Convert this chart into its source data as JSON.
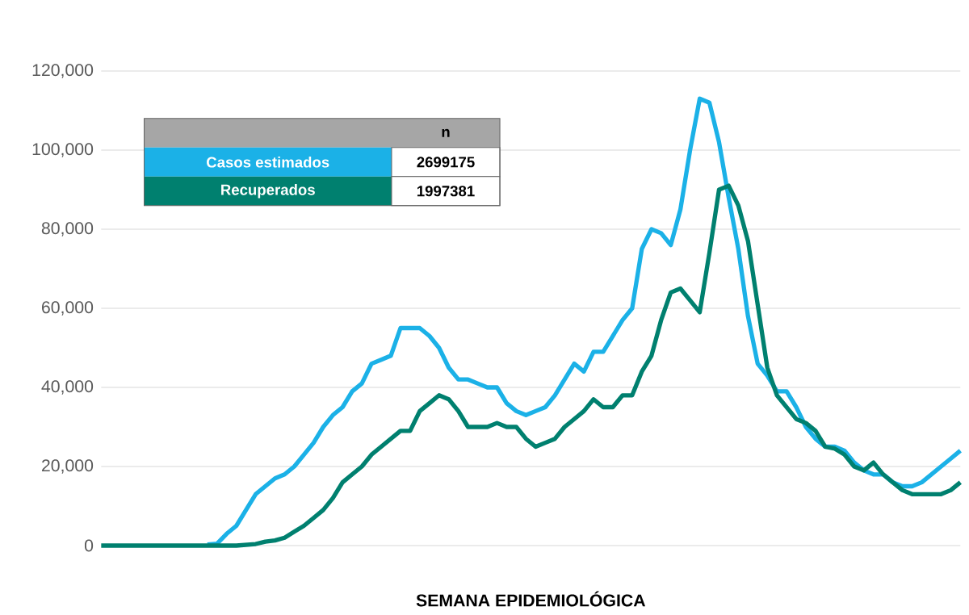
{
  "chart_data": {
    "type": "line",
    "xlabel": "SEMANA EPIDEMIOLÓGICA",
    "categories": [
      null,
      null,
      null,
      null,
      null,
      null,
      null,
      null,
      null,
      null,
      null,
      null,
      null,
      null,
      null,
      null,
      null,
      null,
      null,
      null,
      null,
      null,
      null,
      null,
      null,
      null,
      null,
      null,
      null,
      null,
      null,
      null,
      null,
      null,
      null,
      null,
      null,
      null,
      null,
      null,
      null,
      null,
      null,
      null,
      null,
      null,
      null,
      null,
      null,
      null,
      null,
      null,
      null,
      null,
      null,
      null,
      null,
      null,
      null,
      null,
      null,
      null,
      null,
      null,
      null,
      null,
      null,
      null,
      null,
      null,
      null,
      null,
      null,
      null,
      null,
      null,
      null,
      null,
      null,
      null,
      null,
      null,
      null,
      null,
      null,
      null,
      null,
      null,
      null,
      null
    ],
    "series": [
      {
        "name": "Casos estimados",
        "color": "#1bb1e7",
        "values": [
          null,
          null,
          null,
          null,
          null,
          null,
          null,
          null,
          null,
          null,
          null,
          300,
          500,
          3000,
          5000,
          9000,
          13000,
          15000,
          17000,
          18000,
          20000,
          23000,
          26000,
          30000,
          33000,
          35000,
          39000,
          41000,
          46000,
          47000,
          48000,
          55000,
          55000,
          55000,
          53000,
          50000,
          45000,
          42000,
          42000,
          41000,
          40000,
          40000,
          36000,
          34000,
          33000,
          34000,
          35000,
          38000,
          42000,
          46000,
          44000,
          49000,
          49000,
          53000,
          57000,
          60000,
          75000,
          80000,
          79000,
          76000,
          85000,
          100000,
          113000,
          112000,
          102000,
          88000,
          75000,
          58000,
          46000,
          43000,
          39000,
          39000,
          35000,
          30000,
          27000,
          25000,
          25000,
          24000,
          21000,
          19000,
          18000,
          18000,
          16000,
          15000,
          15000,
          16000,
          18000,
          20000,
          22000,
          24000
        ]
      },
      {
        "name": "Recuperados",
        "color": "#00806f",
        "values": [
          0,
          0,
          0,
          0,
          0,
          0,
          0,
          0,
          0,
          0,
          0,
          0,
          0,
          0,
          0,
          200,
          400,
          1000,
          1300,
          2000,
          3500,
          5000,
          7000,
          9000,
          12000,
          16000,
          18000,
          20000,
          23000,
          25000,
          27000,
          29000,
          29000,
          34000,
          36000,
          38000,
          37000,
          34000,
          30000,
          30000,
          30000,
          31000,
          30000,
          30000,
          27000,
          25000,
          26000,
          27000,
          30000,
          32000,
          34000,
          37000,
          35000,
          35000,
          38000,
          38000,
          44000,
          48000,
          57000,
          64000,
          65000,
          62000,
          59000,
          74000,
          90000,
          91000,
          86000,
          77000,
          61000,
          45000,
          38000,
          35000,
          32000,
          31000,
          29000,
          25000,
          24500,
          23000,
          20000,
          19000,
          21000,
          18000,
          16000,
          14000,
          13000,
          13000,
          13000,
          13000,
          14000,
          16000
        ]
      }
    ],
    "ylim": [
      0,
      120000
    ],
    "yticks": [
      0,
      {
        "value": 20000,
        "label": "20,000"
      },
      {
        "value": 40000,
        "label": "40,000"
      },
      {
        "value": 60000,
        "label": "60,000"
      },
      {
        "value": 80000,
        "label": "80,000"
      },
      {
        "value": 100000,
        "label": "100,000"
      },
      {
        "value": 120000,
        "label": "120,000"
      }
    ],
    "annotations": [
      "n",
      "2699175",
      "1997381"
    ],
    "grid": "y",
    "legend": "top left",
    "tick_labels": "y",
    "marker": "none",
    "line_style": "solid"
  }
}
